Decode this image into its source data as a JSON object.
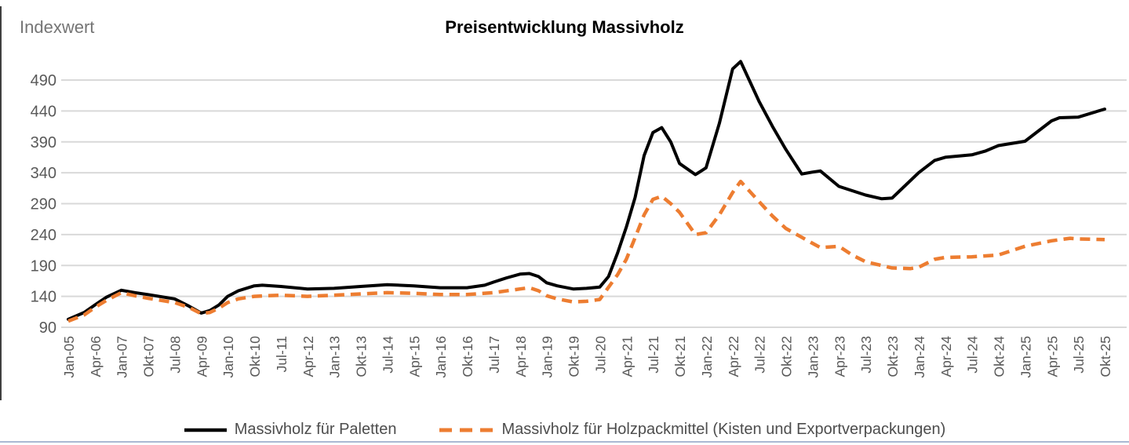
{
  "chart_data": {
    "type": "line",
    "title": "Preisentwicklung Massivholz",
    "y_label": "Indexwert",
    "y_ticks": [
      90,
      140,
      190,
      240,
      290,
      340,
      390,
      440,
      490
    ],
    "ylim": [
      90,
      530
    ],
    "grid": "horizontal-only",
    "legend_position": "bottom",
    "x_axis_note": "category axis, equal tick spacing; tick interval is 9 months from Jan-05 to Apr-21 (first gap 15 months), then 3 months to Okt-25",
    "x_tick_labels": [
      "Jan-05",
      "Apr-06",
      "Jan-07",
      "Okt-07",
      "Jul-08",
      "Apr-09",
      "Jan-10",
      "Okt-10",
      "Jul-11",
      "Apr-12",
      "Jan-13",
      "Okt-13",
      "Jul-14",
      "Apr-15",
      "Jan-16",
      "Okt-16",
      "Jul-17",
      "Apr-18",
      "Jan-19",
      "Okt-19",
      "Jul-20",
      "Apr-21",
      "Jul-21",
      "Okt-21",
      "Jan-22",
      "Apr-22",
      "Jul-22",
      "Okt-22",
      "Jan-23",
      "Apr-23",
      "Jul-23",
      "Okt-23",
      "Jan-24",
      "Apr-24",
      "Jul-24",
      "Okt-24",
      "Jan-25",
      "Apr-25",
      "Jul-25",
      "Okt-25"
    ],
    "point_format": [
      "x_axis_position_in_tick_units",
      "month",
      "index_value"
    ],
    "series": [
      {
        "name": "Massivholz für Paletten",
        "color": "#000000",
        "line_style": "solid",
        "points": [
          [
            0,
            "Jan-05",
            103
          ],
          [
            0.6,
            "Okt-05",
            114
          ],
          [
            1,
            "Apr-06",
            126
          ],
          [
            1.45,
            "Okt-06",
            139
          ],
          [
            2,
            "Jan-07",
            150
          ],
          [
            2.5,
            "Mai-07",
            146
          ],
          [
            3,
            "Okt-07",
            143
          ],
          [
            4,
            "Jul-08",
            136
          ],
          [
            4.55,
            "Dez-08",
            124
          ],
          [
            5,
            "Apr-09",
            113
          ],
          [
            5.33,
            "Jul-09",
            117
          ],
          [
            5.67,
            "Okt-09",
            126
          ],
          [
            6,
            "Jan-10",
            140
          ],
          [
            6.4,
            "Apr-10",
            149
          ],
          [
            7,
            "Okt-10",
            157
          ],
          [
            7.3,
            "Jan-11",
            158
          ],
          [
            8,
            "Jul-11",
            156
          ],
          [
            9,
            "Apr-12",
            152
          ],
          [
            10,
            "Jan-13",
            153
          ],
          [
            11,
            "Okt-13",
            156
          ],
          [
            12,
            "Jul-14",
            159
          ],
          [
            13,
            "Apr-15",
            157
          ],
          [
            14,
            "Jan-16",
            154
          ],
          [
            15,
            "Okt-16",
            154
          ],
          [
            15.67,
            "Apr-17",
            158
          ],
          [
            16,
            "Jul-17",
            163
          ],
          [
            16.5,
            "Nov-17",
            170
          ],
          [
            17,
            "Apr-18",
            176
          ],
          [
            17.35,
            "Jul-18",
            177
          ],
          [
            17.7,
            "Okt-18",
            172
          ],
          [
            18,
            "Jan-19",
            162
          ],
          [
            18.4,
            "Apr-19",
            157
          ],
          [
            19,
            "Okt-19",
            152
          ],
          [
            19.5,
            "Feb-20",
            153
          ],
          [
            20,
            "Jul-20",
            155
          ],
          [
            20.33,
            "Okt-20",
            172
          ],
          [
            20.67,
            "Jan-21",
            210
          ],
          [
            21,
            "Apr-21",
            252
          ],
          [
            21.33,
            "Mai-21",
            300
          ],
          [
            21.67,
            "Jun-21",
            368
          ],
          [
            22,
            "Jul-21",
            405
          ],
          [
            22.33,
            "Aug-21",
            413
          ],
          [
            22.67,
            "Sep-21",
            390
          ],
          [
            23,
            "Okt-21",
            355
          ],
          [
            23.6,
            "Dez-21",
            337
          ],
          [
            24,
            "Jan-22",
            348
          ],
          [
            24.5,
            "Feb-22",
            420
          ],
          [
            25,
            "Apr-22",
            508
          ],
          [
            25.3,
            "Mai-22",
            520
          ],
          [
            26,
            "Jul-22",
            455
          ],
          [
            26.5,
            "Aug-22",
            415
          ],
          [
            27,
            "Okt-22",
            378
          ],
          [
            27.6,
            "Dez-22",
            338
          ],
          [
            28,
            "Jan-23",
            341
          ],
          [
            28.3,
            "Feb-23",
            343
          ],
          [
            29,
            "Apr-23",
            318
          ],
          [
            30,
            "Jul-23",
            304
          ],
          [
            30.6,
            "Sep-23",
            298
          ],
          [
            31,
            "Okt-23",
            299
          ],
          [
            32,
            "Jan-24",
            340
          ],
          [
            32.6,
            "Mär-24",
            360
          ],
          [
            33,
            "Apr-24",
            365
          ],
          [
            34,
            "Jul-24",
            369
          ],
          [
            34.5,
            "Aug-24",
            375
          ],
          [
            35,
            "Okt-24",
            384
          ],
          [
            36,
            "Jan-25",
            391
          ],
          [
            37,
            "Apr-25",
            424
          ],
          [
            37.3,
            "Mai-25",
            429
          ],
          [
            38,
            "Jul-25",
            430
          ],
          [
            39,
            "Okt-25",
            443
          ]
        ]
      },
      {
        "name": "Massivholz für Holzpackmittel (Kisten und Exportverpackungen)",
        "color": "#ED7D31",
        "line_style": "dashed",
        "points": [
          [
            0,
            "Jan-05",
            100
          ],
          [
            0.6,
            "Okt-05",
            110
          ],
          [
            1,
            "Apr-06",
            122
          ],
          [
            1.45,
            "Okt-06",
            134
          ],
          [
            2,
            "Jan-07",
            146
          ],
          [
            2.5,
            "Mai-07",
            141
          ],
          [
            3,
            "Okt-07",
            137
          ],
          [
            4,
            "Jul-08",
            130
          ],
          [
            4.55,
            "Dez-08",
            122
          ],
          [
            5,
            "Apr-09",
            112
          ],
          [
            5.33,
            "Jul-09",
            114
          ],
          [
            5.67,
            "Okt-09",
            121
          ],
          [
            6,
            "Jan-10",
            130
          ],
          [
            6.4,
            "Apr-10",
            136
          ],
          [
            7,
            "Okt-10",
            140
          ],
          [
            8,
            "Jul-11",
            142
          ],
          [
            9,
            "Apr-12",
            140
          ],
          [
            10,
            "Jan-13",
            142
          ],
          [
            11,
            "Okt-13",
            144
          ],
          [
            12,
            "Jul-14",
            146
          ],
          [
            13,
            "Apr-15",
            145
          ],
          [
            14,
            "Jan-16",
            143
          ],
          [
            15,
            "Okt-16",
            143
          ],
          [
            16,
            "Jul-17",
            146
          ],
          [
            17,
            "Apr-18",
            152
          ],
          [
            17.35,
            "Jul-18",
            154
          ],
          [
            17.7,
            "Okt-18",
            149
          ],
          [
            18,
            "Jan-19",
            141
          ],
          [
            18.4,
            "Apr-19",
            136
          ],
          [
            19,
            "Okt-19",
            131
          ],
          [
            19.5,
            "Feb-20",
            132
          ],
          [
            20,
            "Jul-20",
            135
          ],
          [
            20.67,
            "Jan-21",
            175
          ],
          [
            21,
            "Apr-21",
            200
          ],
          [
            21.33,
            "Mai-21",
            235
          ],
          [
            21.67,
            "Jun-21",
            272
          ],
          [
            22,
            "Jul-21",
            297
          ],
          [
            22.33,
            "Aug-21",
            302
          ],
          [
            22.67,
            "Sep-21",
            290
          ],
          [
            23,
            "Okt-21",
            276
          ],
          [
            23.6,
            "Dez-21",
            240
          ],
          [
            24,
            "Jan-22",
            243
          ],
          [
            24.5,
            "Feb-22",
            272
          ],
          [
            25,
            "Apr-22",
            308
          ],
          [
            25.3,
            "Mai-22",
            326
          ],
          [
            26,
            "Jul-22",
            293
          ],
          [
            26.5,
            "Aug-22",
            270
          ],
          [
            27,
            "Okt-22",
            250
          ],
          [
            28,
            "Jan-23",
            226
          ],
          [
            28.3,
            "Feb-23",
            219
          ],
          [
            29,
            "Apr-23",
            221
          ],
          [
            29.5,
            "Jun-23",
            207
          ],
          [
            30,
            "Jul-23",
            196
          ],
          [
            31,
            "Okt-23",
            186
          ],
          [
            31.7,
            "Dez-23",
            185
          ],
          [
            32,
            "Jan-24",
            187
          ],
          [
            32.6,
            "Mär-24",
            200
          ],
          [
            33,
            "Apr-24",
            203
          ],
          [
            34,
            "Jul-24",
            204
          ],
          [
            35,
            "Okt-24",
            207
          ],
          [
            36,
            "Jan-25",
            221
          ],
          [
            37,
            "Apr-25",
            230
          ],
          [
            37.7,
            "Jun-25",
            234
          ],
          [
            38,
            "Jul-25",
            233
          ],
          [
            39,
            "Okt-25",
            232
          ]
        ]
      }
    ],
    "style": {
      "gridline_color": "#D9D9D9",
      "tick_label_color": "#595959",
      "title_color": "#000000",
      "y_axis_title_color": "#757575",
      "legend_text_color": "#4d4d4d",
      "series1_color": "#000000",
      "series2_color": "#ED7D31"
    }
  }
}
